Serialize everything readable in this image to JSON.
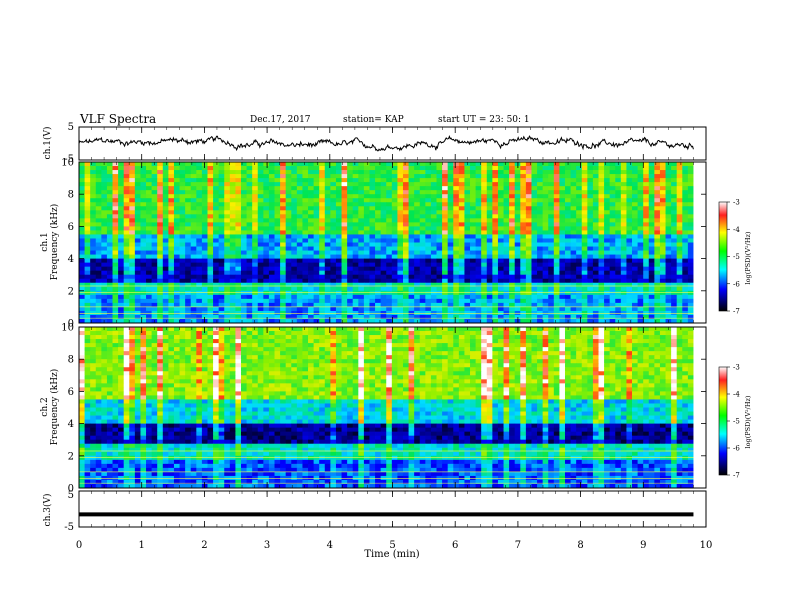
{
  "header": {
    "title": "VLF Spectra",
    "date": "Dec.17, 2017",
    "station": "station= KAP",
    "start": "start UT = 23: 50: 1"
  },
  "chart_data": [
    {
      "type": "line",
      "name": "ch1-waveform",
      "ylabel": "ch.1(V)",
      "ylim": [
        -5,
        5
      ],
      "yticks": [
        "5",
        "-5"
      ],
      "xlim": [
        0,
        10
      ],
      "note": "noisy voltage trace fluctuating roughly between -1.5 and 1.5 V",
      "series_style": {
        "color": "#000000"
      }
    },
    {
      "type": "heatmap",
      "name": "ch1-spectrogram",
      "ylabel": [
        "ch.1",
        "Frequency (kHz)"
      ],
      "ylim": [
        0,
        10
      ],
      "yticks": [
        "0",
        "2",
        "4",
        "6",
        "8",
        "10"
      ],
      "xlim": [
        0,
        10
      ],
      "data_end_min": 9.8,
      "colorbar": {
        "label": "log(PSD)(V²/Hz)",
        "range": [
          -7,
          -3
        ],
        "ticks": [
          "-3",
          "-4",
          "-5",
          "-6",
          "-7"
        ]
      },
      "bands_khz": [
        {
          "from": 0,
          "to": 1.8,
          "level": -5.6
        },
        {
          "from": 1.8,
          "to": 2.6,
          "level": -5.2
        },
        {
          "from": 2.6,
          "to": 4.0,
          "level": -6.4
        },
        {
          "from": 4.0,
          "to": 5.5,
          "level": -5.5
        },
        {
          "from": 5.5,
          "to": 10,
          "level": -4.7
        }
      ]
    },
    {
      "type": "heatmap",
      "name": "ch2-spectrogram",
      "ylabel": [
        "ch.2",
        "Frequency (kHz)"
      ],
      "ylim": [
        0,
        10
      ],
      "yticks": [
        "0",
        "2",
        "4",
        "6",
        "8",
        "10"
      ],
      "xlim": [
        0,
        10
      ],
      "data_end_min": 9.8,
      "colorbar": {
        "label": "log(PSD)(V²/Hz)",
        "range": [
          -7,
          -3
        ],
        "ticks": [
          "-3",
          "-4",
          "-5",
          "-6",
          "-7"
        ]
      },
      "bands_khz": [
        {
          "from": 0,
          "to": 1.8,
          "level": -5.8
        },
        {
          "from": 1.8,
          "to": 2.7,
          "level": -5.2
        },
        {
          "from": 2.7,
          "to": 4.0,
          "level": -6.5
        },
        {
          "from": 4.0,
          "to": 5.5,
          "level": -5.3
        },
        {
          "from": 5.5,
          "to": 10,
          "level": -4.3
        }
      ]
    },
    {
      "type": "line",
      "name": "ch3-waveform",
      "ylabel": "ch.3(V)",
      "ylim": [
        -5,
        5
      ],
      "yticks": [
        "5",
        "-5"
      ],
      "xlim": [
        0,
        10
      ],
      "constant_value": -1.5,
      "xlabel": "Time (min)",
      "xticks": [
        "0",
        "1",
        "2",
        "3",
        "4",
        "5",
        "6",
        "7",
        "8",
        "9",
        "10"
      ]
    }
  ]
}
